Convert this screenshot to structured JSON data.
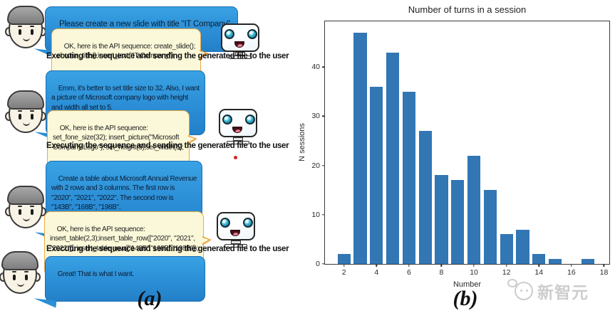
{
  "figure": {
    "panel_a_label": "(a)",
    "panel_b_label": "(b)"
  },
  "chat": {
    "turns": [
      {
        "role": "user",
        "text": "Please create a new slide with title \"IT Company\"."
      },
      {
        "role": "assistant",
        "text": "OK, here is the API sequence: create_slide();\nchoose_title();insert_text(\"IT Company\");"
      },
      {
        "role": "status",
        "text": "Executing the sequence and sending the generated file to the user"
      },
      {
        "role": "user",
        "text": "Emm, it's better to set title size to 32. Also, I want\na picture of Microsoft company logo with height\nand width all set to 5."
      },
      {
        "role": "assistant",
        "text": "OK, here is the API sequence:\nset_fone_size(32); insert_picture(\"Microsoft\nCompany Logo\"); set_height(5);set_width(5);"
      },
      {
        "role": "status",
        "text": "Executing the sequence and sending the generated file to the user"
      },
      {
        "role": "user",
        "text": "Create a table about Microsoft Annual Revenue\nwith 2 rows and 3 columns. The first row is\n\"2020\", \"2021\", \"2022\". The second row is\n\"143B\", \"168B\", \"198B\"."
      },
      {
        "role": "assistant",
        "text": "OK, here is the API sequence:\ninsert_table(2,3);insert_table_row([\"2020\", \"2021\",\n\"2022\"]); insert_table_row([\"143B\",\"168B\",\"198B\"]);"
      },
      {
        "role": "status",
        "text": "Executing the sequence and sending the generated file to the user"
      },
      {
        "role": "user",
        "text": "Great! That is what I want."
      }
    ]
  },
  "icons": {
    "user_avatar": "boy-face",
    "assistant_avatar": "computer-face-robot",
    "watermark_logo": "xinzhiyuan-mascot"
  },
  "colors": {
    "user_bubble": "#2b8ed6",
    "user_bubble_border": "#1c6fb4",
    "ai_bubble": "#fbf8d9",
    "ai_bubble_border": "#eba848",
    "bar": "#3276b4",
    "watermark": "#cdcdcd",
    "red_dot": "#e02020"
  },
  "watermark_text": "新智元",
  "chart_data": {
    "type": "bar",
    "title": "Number of turns in a session",
    "xlabel": "Number",
    "ylabel": "N sessions",
    "x": [
      2,
      3,
      4,
      5,
      6,
      7,
      8,
      9,
      10,
      11,
      12,
      13,
      14,
      15,
      16,
      17
    ],
    "values": [
      2,
      47,
      36,
      43,
      35,
      27,
      18,
      17,
      22,
      15,
      6,
      7,
      2,
      1,
      0,
      1
    ],
    "xticks": [
      2,
      4,
      6,
      8,
      10,
      12,
      14,
      16,
      18
    ],
    "yticks": [
      0,
      10,
      20,
      30,
      40
    ],
    "xlim": [
      0.83,
      18.33
    ],
    "ylim": [
      0,
      49.3
    ],
    "bar_width": 0.8,
    "bar_color": "#3276b4",
    "grid": false,
    "legend": null
  }
}
